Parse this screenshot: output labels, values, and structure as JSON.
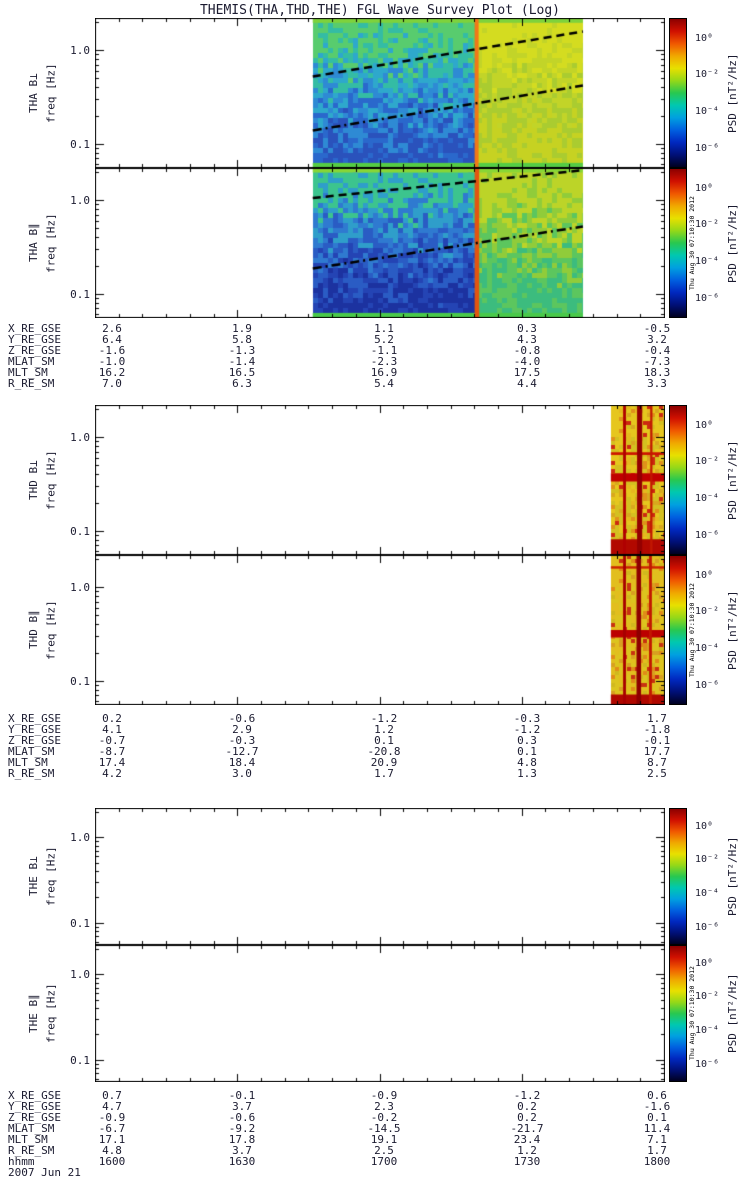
{
  "chart_data": {
    "type": "heatmap",
    "title": "THEMIS(THA,THD,THE) FGL Wave Survey Plot (Log)",
    "created": "Thu Aug 30 07:10:30 2012",
    "freq_axis": {
      "label": "freq [Hz]",
      "scale": "log",
      "fmin": 0.055,
      "fmax": 2.2,
      "major": [
        {
          "text": "1.0",
          "value": 1.0
        },
        {
          "text": "0.1",
          "value": 0.1
        }
      ],
      "minor": [
        2,
        0.9,
        0.8,
        0.7,
        0.6,
        0.5,
        0.4,
        0.3,
        0.2,
        0.09,
        0.08,
        0.07,
        0.06
      ]
    },
    "time_axis": {
      "label": "hhmm",
      "date": "2007 Jun 21",
      "ticks": [
        "1600",
        "1630",
        "1700",
        "1730",
        "1800"
      ]
    },
    "colorbar": {
      "label": "PSD [nT²/Hz]",
      "ticks": [
        "10⁰",
        "10⁻²",
        "10⁻⁴",
        "10⁻⁶"
      ],
      "gradient": [
        "#8c0000",
        "#d01000",
        "#f05800",
        "#f0a800",
        "#e8e000",
        "#94d818",
        "#28c850",
        "#00c8b0",
        "#00a0e0",
        "#0060e0",
        "#0028c0",
        "#001078",
        "#000020"
      ]
    },
    "groups": [
      {
        "id": "THA",
        "panels": [
          {
            "label_line1": "THA B⊥",
            "label_line2": "freq [Hz]",
            "summary": "Wave power present ~1645-1745 UT: PSD ~1e-5 to 1e-3 nT^2/Hz (blue/green) before ~1733 UT, rising to ~1e-2 (yellow) after; two black guide lines (dashed, dash-dot) rise with time.",
            "spec": {
              "regions": [
                {
                  "x0": 0.382,
                  "x1": 0.67,
                  "cell": 5,
                  "jitter": 0.55,
                  "colors": [
                    "#58cc6e",
                    "#34bca4",
                    "#2ea8cc",
                    "#2e8ad4",
                    "#2a68cc",
                    "#2a52bc"
                  ]
                },
                {
                  "x0": 0.67,
                  "x1": 0.856,
                  "cell": 5,
                  "jitter": 0.5,
                  "colors": [
                    "#d4dc20",
                    "#c2d428",
                    "#aacc30",
                    "#c6d222"
                  ]
                }
              ],
              "vstripes": [
                {
                  "x": 0.666,
                  "w": 0.007,
                  "color": "#f07818"
                }
              ],
              "hstripes": [
                {
                  "x0": 0.382,
                  "x1": 0.856,
                  "y": 0,
                  "h": 0.032,
                  "color": "#7ed23c"
                },
                {
                  "x0": 0.382,
                  "x1": 0.856,
                  "y": 0.966,
                  "h": 0.034,
                  "color": "#55cc44"
                }
              ],
              "lines": [
                {
                  "x0": 0.382,
                  "y0": 0.39,
                  "x1": 0.856,
                  "y1": 0.09,
                  "width": 2.5,
                  "dash": [
                    8,
                    5
                  ],
                  "color": "#000000"
                },
                {
                  "x0": 0.382,
                  "y0": 0.75,
                  "x1": 0.856,
                  "y1": 0.45,
                  "width": 2.5,
                  "dash": [
                    9,
                    4,
                    2,
                    4
                  ],
                  "color": "#000000"
                }
              ]
            }
          },
          {
            "label_line1": "THA B∥",
            "label_line2": "freq [Hz]",
            "summary": "Parallel component: lowest PSD (dark blue, ~1e-6) below ~0.3 Hz before ~1733 UT, green-yellow mottle afterwards; same rising guide lines; orange burst column at ~1733 UT.",
            "spec": {
              "regions": [
                {
                  "x0": 0.382,
                  "x1": 0.67,
                  "cell": 5,
                  "jitter": 0.5,
                  "colors": [
                    "#3cc48e",
                    "#2f9eca",
                    "#2f7ad0",
                    "#2a5cc4",
                    "#2444b4",
                    "#1c32a0"
                  ]
                },
                {
                  "x0": 0.67,
                  "x1": 0.856,
                  "cell": 5,
                  "jitter": 0.6,
                  "colors": [
                    "#bcd428",
                    "#90cc3a",
                    "#5cc65e",
                    "#3cbc7e"
                  ]
                }
              ],
              "vstripes": [
                {
                  "x": 0.666,
                  "w": 0.008,
                  "color": "#e25510"
                }
              ],
              "hstripes": [
                {
                  "x0": 0.382,
                  "x1": 0.856,
                  "y": 0,
                  "h": 0.03,
                  "color": "#88d636"
                },
                {
                  "x0": 0.382,
                  "x1": 0.856,
                  "y": 0.966,
                  "h": 0.034,
                  "color": "#49c94a"
                }
              ],
              "lines": [
                {
                  "x0": 0.382,
                  "y0": 0.2,
                  "x1": 0.856,
                  "y1": 0.015,
                  "width": 2.5,
                  "dash": [
                    8,
                    5
                  ],
                  "color": "#000000"
                },
                {
                  "x0": 0.382,
                  "y0": 0.67,
                  "x1": 0.856,
                  "y1": 0.39,
                  "width": 2.5,
                  "dash": [
                    9,
                    4,
                    2,
                    4
                  ],
                  "color": "#000000"
                }
              ]
            }
          }
        ],
        "ephemeris": [
          {
            "label": "X_RE_GSE",
            "values": [
              "2.6",
              "1.9",
              "1.1",
              "0.3",
              "-0.5"
            ]
          },
          {
            "label": "Y_RE_GSE",
            "values": [
              "6.4",
              "5.8",
              "5.2",
              "4.3",
              "3.2"
            ]
          },
          {
            "label": "Z_RE_GSE",
            "values": [
              "-1.6",
              "-1.3",
              "-1.1",
              "-0.8",
              "-0.4"
            ]
          },
          {
            "label": "MLAT_SM",
            "values": [
              "-1.0",
              "-1.4",
              "-2.3",
              "-4.0",
              "-7.3"
            ]
          },
          {
            "label": "MLT_SM",
            "values": [
              "16.2",
              "16.5",
              "16.9",
              "17.5",
              "18.3"
            ]
          },
          {
            "label": "R_RE_SM",
            "values": [
              "7.0",
              "6.3",
              "5.4",
              "4.4",
              "3.3"
            ]
          }
        ]
      },
      {
        "id": "THD",
        "panels": [
          {
            "label_line1": "THD B⊥",
            "label_line2": "freq [Hz]",
            "summary": "No data until ~1748 UT; then intense emission (PSD up to >1e0 nT^2/Hz) with dark-red vertical bursts, a strong band near 0.3-0.4 Hz and high power at lowest frequencies.",
            "spec": {
              "regions": [
                {
                  "x0": 0.905,
                  "x1": 1.0,
                  "cell": 4,
                  "jitter": 2.2,
                  "colors": [
                    "#e6c61e",
                    "#d8a81e",
                    "#e0921a",
                    "#cc2a10",
                    "#e6b81e",
                    "#d4c020"
                  ]
                }
              ],
              "vstripes": [
                {
                  "x": 0.9265,
                  "w": 0.005,
                  "color": "#b00000"
                },
                {
                  "x": 0.951,
                  "w": 0.009,
                  "color": "#940000"
                },
                {
                  "x": 0.974,
                  "w": 0.004,
                  "color": "#c21800"
                }
              ],
              "hstripes": [
                {
                  "x0": 0.905,
                  "x1": 1.0,
                  "y": 0.315,
                  "h": 0.018,
                  "color": "#cc1400"
                },
                {
                  "x0": 0.905,
                  "x1": 1.0,
                  "y": 0.455,
                  "h": 0.055,
                  "color": "#c00000"
                },
                {
                  "x0": 0.905,
                  "x1": 1.0,
                  "y": 0.895,
                  "h": 0.105,
                  "color": "#b20800"
                }
              ],
              "lines": []
            }
          },
          {
            "label_line1": "THD B∥",
            "label_line2": "freq [Hz]",
            "summary": "No data until ~1748 UT; intense broadband bursts (red, PSD >1e0 nT^2/Hz), narrow band near 0.3 Hz and enhanced power near the bottom of the band.",
            "spec": {
              "regions": [
                {
                  "x0": 0.905,
                  "x1": 1.0,
                  "cell": 4,
                  "jitter": 2.2,
                  "colors": [
                    "#e2be1e",
                    "#d8a020",
                    "#e08c18",
                    "#d0b81e",
                    "#c83210",
                    "#dcc41e"
                  ]
                }
              ],
              "vstripes": [
                {
                  "x": 0.9265,
                  "w": 0.005,
                  "color": "#a80000"
                },
                {
                  "x": 0.95,
                  "w": 0.008,
                  "color": "#8e0000"
                },
                {
                  "x": 0.972,
                  "w": 0.005,
                  "color": "#c21800"
                }
              ],
              "hstripes": [
                {
                  "x0": 0.905,
                  "x1": 1.0,
                  "y": 0.075,
                  "h": 0.016,
                  "color": "#cc2000"
                },
                {
                  "x0": 0.905,
                  "x1": 1.0,
                  "y": 0.5,
                  "h": 0.05,
                  "color": "#bc0000"
                },
                {
                  "x0": 0.905,
                  "x1": 1.0,
                  "y": 0.93,
                  "h": 0.07,
                  "color": "#b00800"
                }
              ],
              "lines": []
            }
          }
        ],
        "ephemeris": [
          {
            "label": "X_RE_GSE",
            "values": [
              "0.2",
              "-0.6",
              "-1.2",
              "-0.3",
              "1.7"
            ]
          },
          {
            "label": "Y_RE_GSE",
            "values": [
              "4.1",
              "2.9",
              "1.2",
              "-1.2",
              "-1.8"
            ]
          },
          {
            "label": "Z_RE_GSE",
            "values": [
              "-0.7",
              "-0.3",
              "0.1",
              "0.3",
              "-0.1"
            ]
          },
          {
            "label": "MLAT_SM",
            "values": [
              "-8.7",
              "-12.7",
              "-20.8",
              "0.1",
              "17.7"
            ]
          },
          {
            "label": "MLT_SM",
            "values": [
              "17.4",
              "18.4",
              "20.9",
              "4.8",
              "8.7"
            ]
          },
          {
            "label": "R_RE_SM",
            "values": [
              "4.2",
              "3.0",
              "1.7",
              "1.3",
              "2.5"
            ]
          }
        ]
      },
      {
        "id": "THE",
        "panels": [
          {
            "label_line1": "THE B⊥",
            "label_line2": "freq [Hz]",
            "summary": "No FGL wave data for this interval (blank panel).",
            "spec": {
              "regions": [],
              "vstripes": [],
              "hstripes": [],
              "lines": []
            }
          },
          {
            "label_line1": "THE B∥",
            "label_line2": "freq [Hz]",
            "summary": "No FGL wave data for this interval (blank panel).",
            "spec": {
              "regions": [],
              "vstripes": [],
              "hstripes": [],
              "lines": []
            }
          }
        ],
        "ephemeris": [
          {
            "label": "X_RE_GSE",
            "values": [
              "0.7",
              "-0.1",
              "-0.9",
              "-1.2",
              "0.6"
            ]
          },
          {
            "label": "Y_RE_GSE",
            "values": [
              "4.7",
              "3.7",
              "2.3",
              "0.2",
              "-1.6"
            ]
          },
          {
            "label": "Z_RE_GSE",
            "values": [
              "-0.9",
              "-0.6",
              "-0.2",
              "0.2",
              "0.1"
            ]
          },
          {
            "label": "MLAT_SM",
            "values": [
              "-6.7",
              "-9.2",
              "-14.5",
              "-21.7",
              "11.4"
            ]
          },
          {
            "label": "MLT_SM",
            "values": [
              "17.1",
              "17.8",
              "19.1",
              "23.4",
              "7.1"
            ]
          },
          {
            "label": "R_RE_SM",
            "values": [
              "4.8",
              "3.7",
              "2.5",
              "1.2",
              "1.7"
            ]
          }
        ]
      }
    ]
  }
}
